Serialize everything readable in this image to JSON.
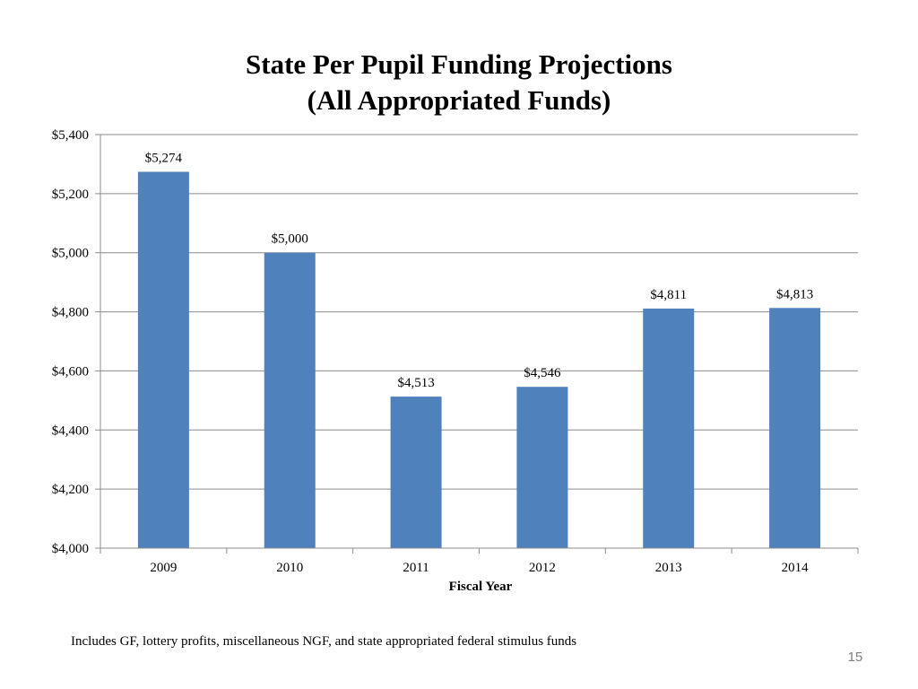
{
  "slide": {
    "title_line1": "State Per Pupil Funding Projections",
    "title_line2": "(All Appropriated Funds)",
    "footnote": "Includes GF, lottery profits, miscellaneous NGF, and state appropriated federal stimulus funds",
    "page_number": "15"
  },
  "chart_data": {
    "type": "bar",
    "title": "State Per Pupil Funding Projections (All Appropriated Funds)",
    "xlabel": "Fiscal Year",
    "ylabel": "",
    "categories": [
      "2009",
      "2010",
      "2011",
      "2012",
      "2013",
      "2014"
    ],
    "values": [
      5274,
      5000,
      4513,
      4546,
      4811,
      4813
    ],
    "data_labels": [
      "$5,274",
      "$5,000",
      "$4,513",
      "$4,546",
      "$4,811",
      "$4,813"
    ],
    "ylim": [
      4000,
      5400
    ],
    "yticks": [
      4000,
      4200,
      4400,
      4600,
      4800,
      5000,
      5200,
      5400
    ],
    "ytick_labels": [
      "$4,000",
      "$4,200",
      "$4,400",
      "$4,600",
      "$4,800",
      "$5,000",
      "$5,200",
      "$5,400"
    ],
    "grid": true,
    "legend": "none",
    "bar_color": "#4f81bd",
    "grid_color": "#8c8c8c"
  }
}
